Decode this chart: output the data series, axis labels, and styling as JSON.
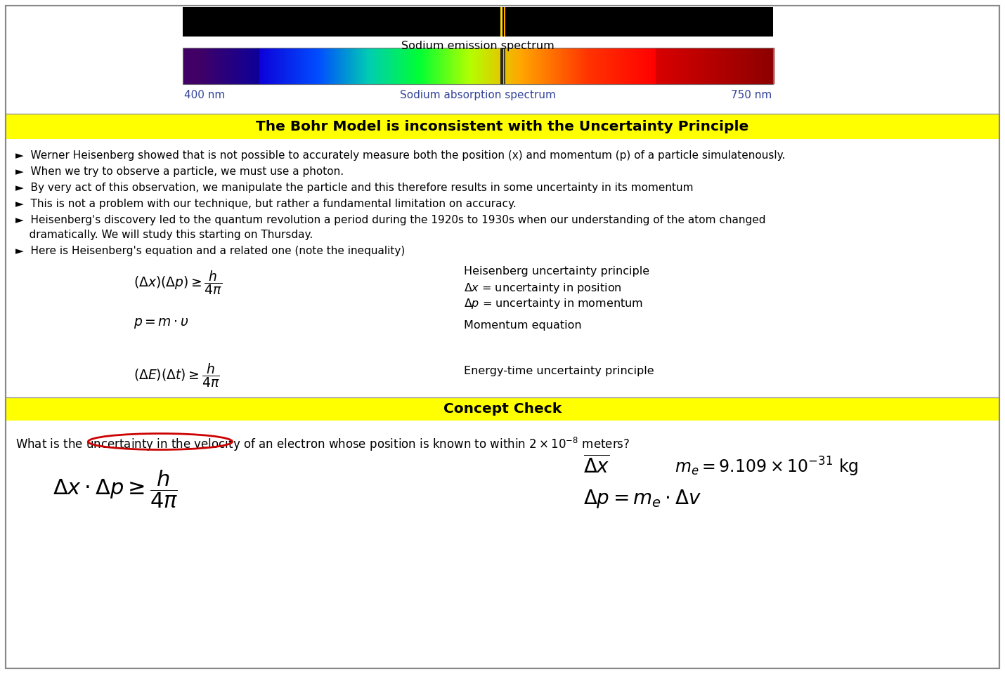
{
  "bg_color": "#ffffff",
  "border_color": "#888888",
  "yellow_color": "#ffff00",
  "emission_label": "Sodium emission spectrum",
  "absorption_label": "Sodium absorption spectrum",
  "nm_left": "400 nm",
  "nm_right": "750 nm",
  "section1_title": "The Bohr Model is inconsistent with the Uncertainty Principle",
  "bullet1": "►  Werner Heisenberg showed that is not possible to accurately measure both the position (x) and momentum (p) of a particle simulatenously.",
  "bullet2": "►  When we try to observe a particle, we must use a photon.",
  "bullet3": "►  By very act of this observation, we manipulate the particle and this therefore results in some uncertainty in its momentum",
  "bullet4": "►  This is not a problem with our technique, but rather a fundamental limitation on accuracy.",
  "bullet5a": "►  Heisenberg's discovery led to the quantum revolution a period during the 1920s to 1930s when our understanding of the atom changed",
  "bullet5b": "    dramatically. We will study this starting on Thursday.",
  "bullet6": "►  Here is Heisenberg's equation and a related one (note the inequality)",
  "eq1_label1": "Heisenberg uncertainty principle",
  "eq1_label2": "Δx = uncertainty in position",
  "eq1_label3": "Δp = uncertainty in momentum",
  "eq2_label": "Momentum equation",
  "eq3_label": "Energy-time uncertainty principle",
  "section2_title": "Concept Check",
  "concept_q1": "What is the",
  "concept_q2": "uncertainty in the velocity",
  "concept_q3": "of an electron whose position is known to within 2 × 10",
  "concept_q3_exp": "-8",
  "concept_q4": " meters?"
}
